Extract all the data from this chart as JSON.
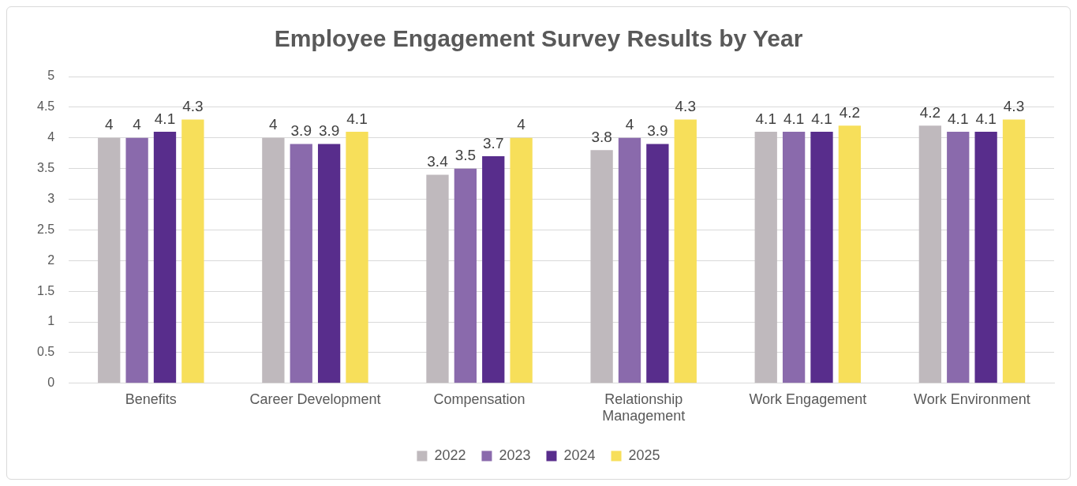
{
  "chart_data": {
    "type": "bar",
    "title": "Employee Engagement Survey Results by Year",
    "categories": [
      "Benefits",
      "Career Development",
      "Compensation",
      "Relationship Management",
      "Work Engagement",
      "Work Environment"
    ],
    "series": [
      {
        "name": "2022",
        "color": "#bfb9bd",
        "values": [
          4,
          4,
          3.4,
          3.8,
          4.1,
          4.2
        ]
      },
      {
        "name": "2023",
        "color": "#8a6aac",
        "values": [
          4,
          3.9,
          3.5,
          4,
          4.1,
          4.1
        ]
      },
      {
        "name": "2024",
        "color": "#582d8c",
        "values": [
          4.1,
          3.9,
          3.7,
          3.9,
          4.1,
          4.1
        ]
      },
      {
        "name": "2025",
        "color": "#f7df5a",
        "values": [
          4.3,
          4.1,
          4,
          4.3,
          4.2,
          4.3
        ]
      }
    ],
    "ylim": [
      0,
      5
    ],
    "yticks": [
      0,
      0.5,
      1,
      1.5,
      2,
      2.5,
      3,
      3.5,
      4,
      4.5,
      5
    ],
    "grid": "y",
    "legend": "bottom",
    "data_labels": true
  }
}
